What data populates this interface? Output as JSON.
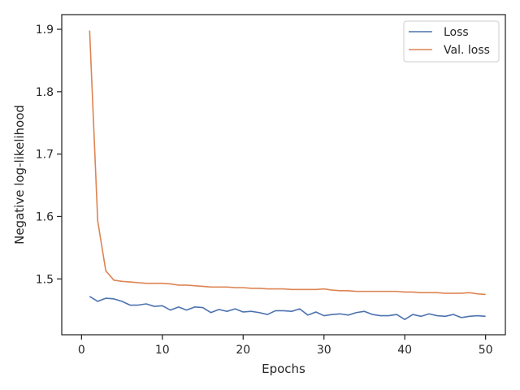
{
  "chart_data": {
    "type": "line",
    "xlabel": "Epochs",
    "ylabel": "Negative log-likelihood",
    "xlim": [
      -2.45,
      52.45
    ],
    "ylim": [
      1.4105,
      1.9235
    ],
    "xticks": [
      0,
      10,
      20,
      30,
      40,
      50
    ],
    "yticks": [
      1.5,
      1.6,
      1.7,
      1.8,
      1.9
    ],
    "xtick_labels": [
      "0",
      "10",
      "20",
      "30",
      "40",
      "50"
    ],
    "ytick_labels": [
      "1.5",
      "1.6",
      "1.7",
      "1.8",
      "1.9"
    ],
    "grid": false,
    "legend_position": "top-right",
    "x": [
      1,
      2,
      3,
      4,
      5,
      6,
      7,
      8,
      9,
      10,
      11,
      12,
      13,
      14,
      15,
      16,
      17,
      18,
      19,
      20,
      21,
      22,
      23,
      24,
      25,
      26,
      27,
      28,
      29,
      30,
      31,
      32,
      33,
      34,
      35,
      36,
      37,
      38,
      39,
      40,
      41,
      42,
      43,
      44,
      45,
      46,
      47,
      48,
      49,
      50
    ],
    "series": [
      {
        "name": "Loss",
        "color": "#4c72b0",
        "values": [
          1.472,
          1.464,
          1.469,
          1.468,
          1.464,
          1.458,
          1.458,
          1.46,
          1.456,
          1.457,
          1.45,
          1.455,
          1.45,
          1.455,
          1.454,
          1.446,
          1.451,
          1.448,
          1.452,
          1.447,
          1.448,
          1.446,
          1.443,
          1.449,
          1.449,
          1.448,
          1.452,
          1.442,
          1.447,
          1.441,
          1.443,
          1.444,
          1.442,
          1.446,
          1.448,
          1.443,
          1.441,
          1.441,
          1.443,
          1.435,
          1.443,
          1.44,
          1.444,
          1.441,
          1.44,
          1.443,
          1.438,
          1.44,
          1.441,
          1.44
        ]
      },
      {
        "name": "Val. loss",
        "color": "#dd8452",
        "values": [
          1.898,
          1.593,
          1.513,
          1.498,
          1.496,
          1.495,
          1.494,
          1.493,
          1.493,
          1.493,
          1.492,
          1.49,
          1.49,
          1.489,
          1.488,
          1.487,
          1.487,
          1.487,
          1.486,
          1.486,
          1.485,
          1.485,
          1.484,
          1.484,
          1.484,
          1.483,
          1.483,
          1.483,
          1.483,
          1.484,
          1.482,
          1.481,
          1.481,
          1.48,
          1.48,
          1.48,
          1.48,
          1.48,
          1.48,
          1.479,
          1.479,
          1.478,
          1.478,
          1.478,
          1.477,
          1.477,
          1.477,
          1.478,
          1.476,
          1.475
        ]
      }
    ]
  }
}
